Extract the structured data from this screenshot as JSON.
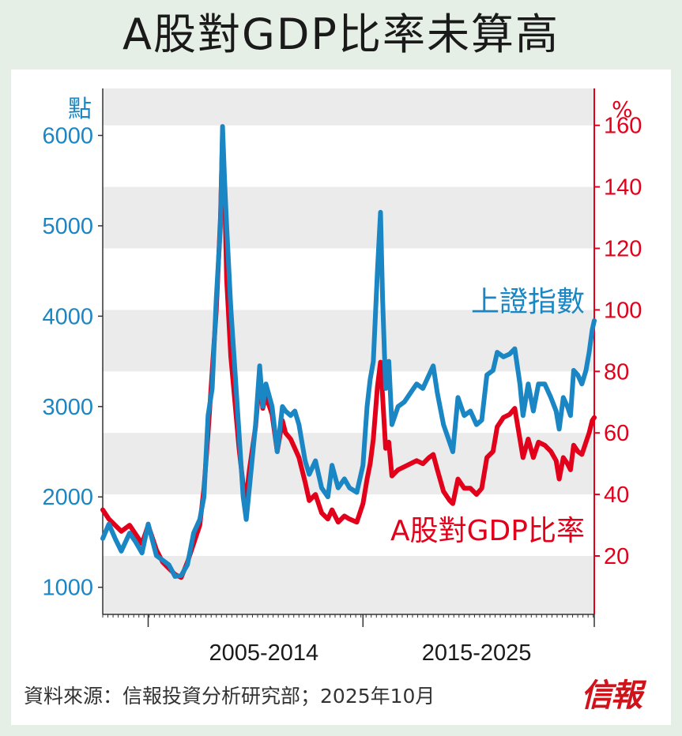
{
  "title": "A股對GDP比率未算高",
  "source": "資料來源：信報投資分析研究部；2025年10月",
  "logo_text": "信報",
  "colors": {
    "blue": "#1a86c4",
    "red": "#e2001a",
    "band": "#ebebeb"
  },
  "chart_data": {
    "type": "line",
    "left_axis": {
      "unit_label": "點",
      "ticks": [
        1000,
        2000,
        3000,
        4000,
        5000,
        6000
      ],
      "range": [
        700,
        6520
      ]
    },
    "right_axis": {
      "unit_label": "%",
      "ticks": [
        20,
        40,
        60,
        80,
        100,
        120,
        140,
        160
      ],
      "range": [
        1,
        172
      ]
    },
    "x_labels": [
      {
        "text": "2005-2014",
        "year": 2009.8
      },
      {
        "text": "2015-2025",
        "year": 2020.1
      }
    ],
    "x_range": [
      2002.0,
      2025.8
    ],
    "x_major_ticks": [
      2004.2,
      2014.6,
      2025.8
    ],
    "series": [
      {
        "name": "上證指數",
        "axis": "left",
        "color": "#1a86c4",
        "points": [
          [
            2002.0,
            1540
          ],
          [
            2002.3,
            1700
          ],
          [
            2002.6,
            1540
          ],
          [
            2002.9,
            1400
          ],
          [
            2003.3,
            1600
          ],
          [
            2003.6,
            1500
          ],
          [
            2003.9,
            1380
          ],
          [
            2004.2,
            1700
          ],
          [
            2004.6,
            1350
          ],
          [
            2004.9,
            1300
          ],
          [
            2005.2,
            1250
          ],
          [
            2005.5,
            1120
          ],
          [
            2005.8,
            1130
          ],
          [
            2006.1,
            1250
          ],
          [
            2006.4,
            1600
          ],
          [
            2006.7,
            1750
          ],
          [
            2006.9,
            2000
          ],
          [
            2007.1,
            2900
          ],
          [
            2007.3,
            3200
          ],
          [
            2007.5,
            4200
          ],
          [
            2007.7,
            5000
          ],
          [
            2007.8,
            6100
          ],
          [
            2007.9,
            5500
          ],
          [
            2008.0,
            5000
          ],
          [
            2008.2,
            4100
          ],
          [
            2008.4,
            3400
          ],
          [
            2008.6,
            2700
          ],
          [
            2008.8,
            2000
          ],
          [
            2008.95,
            1750
          ],
          [
            2009.1,
            2100
          ],
          [
            2009.4,
            2800
          ],
          [
            2009.6,
            3450
          ],
          [
            2009.75,
            3000
          ],
          [
            2009.9,
            3250
          ],
          [
            2010.2,
            3000
          ],
          [
            2010.45,
            2500
          ],
          [
            2010.7,
            3000
          ],
          [
            2010.85,
            2950
          ],
          [
            2011.1,
            2900
          ],
          [
            2011.3,
            2950
          ],
          [
            2011.5,
            2800
          ],
          [
            2011.8,
            2400
          ],
          [
            2012.0,
            2250
          ],
          [
            2012.3,
            2400
          ],
          [
            2012.6,
            2100
          ],
          [
            2012.9,
            2000
          ],
          [
            2013.1,
            2350
          ],
          [
            2013.4,
            2100
          ],
          [
            2013.7,
            2200
          ],
          [
            2013.95,
            2100
          ],
          [
            2014.3,
            2050
          ],
          [
            2014.6,
            2350
          ],
          [
            2014.8,
            3000
          ],
          [
            2014.95,
            3300
          ],
          [
            2015.1,
            3500
          ],
          [
            2015.3,
            4500
          ],
          [
            2015.45,
            5150
          ],
          [
            2015.55,
            4200
          ],
          [
            2015.7,
            3200
          ],
          [
            2015.85,
            3500
          ],
          [
            2016.0,
            2800
          ],
          [
            2016.3,
            3000
          ],
          [
            2016.6,
            3050
          ],
          [
            2016.9,
            3150
          ],
          [
            2017.2,
            3250
          ],
          [
            2017.5,
            3200
          ],
          [
            2017.8,
            3350
          ],
          [
            2018.0,
            3450
          ],
          [
            2018.2,
            3150
          ],
          [
            2018.5,
            2800
          ],
          [
            2018.8,
            2600
          ],
          [
            2018.95,
            2500
          ],
          [
            2019.2,
            3100
          ],
          [
            2019.5,
            2900
          ],
          [
            2019.8,
            2950
          ],
          [
            2020.1,
            2800
          ],
          [
            2020.35,
            2850
          ],
          [
            2020.6,
            3350
          ],
          [
            2020.9,
            3400
          ],
          [
            2021.1,
            3600
          ],
          [
            2021.4,
            3550
          ],
          [
            2021.7,
            3580
          ],
          [
            2021.95,
            3640
          ],
          [
            2022.2,
            3250
          ],
          [
            2022.35,
            2900
          ],
          [
            2022.6,
            3250
          ],
          [
            2022.85,
            2950
          ],
          [
            2023.1,
            3250
          ],
          [
            2023.4,
            3250
          ],
          [
            2023.7,
            3100
          ],
          [
            2023.95,
            2950
          ],
          [
            2024.1,
            2750
          ],
          [
            2024.3,
            3100
          ],
          [
            2024.5,
            3000
          ],
          [
            2024.65,
            2900
          ],
          [
            2024.8,
            3400
          ],
          [
            2025.0,
            3350
          ],
          [
            2025.2,
            3250
          ],
          [
            2025.4,
            3400
          ],
          [
            2025.55,
            3600
          ],
          [
            2025.7,
            3850
          ],
          [
            2025.8,
            3950
          ]
        ]
      },
      {
        "name": "A股對GDP比率",
        "axis": "right",
        "color": "#e2001a",
        "points": [
          [
            2002.0,
            35
          ],
          [
            2002.3,
            32
          ],
          [
            2002.6,
            30
          ],
          [
            2002.9,
            28
          ],
          [
            2003.3,
            30
          ],
          [
            2003.6,
            27
          ],
          [
            2003.9,
            24
          ],
          [
            2004.2,
            30
          ],
          [
            2004.6,
            22
          ],
          [
            2004.9,
            18
          ],
          [
            2005.2,
            16
          ],
          [
            2005.5,
            14
          ],
          [
            2005.8,
            13
          ],
          [
            2006.1,
            18
          ],
          [
            2006.4,
            24
          ],
          [
            2006.7,
            30
          ],
          [
            2006.9,
            42
          ],
          [
            2007.1,
            60
          ],
          [
            2007.3,
            80
          ],
          [
            2007.5,
            100
          ],
          [
            2007.7,
            130
          ],
          [
            2007.8,
            157
          ],
          [
            2007.9,
            140
          ],
          [
            2008.0,
            110
          ],
          [
            2008.2,
            85
          ],
          [
            2008.4,
            70
          ],
          [
            2008.6,
            55
          ],
          [
            2008.8,
            43
          ],
          [
            2008.95,
            39
          ],
          [
            2009.1,
            48
          ],
          [
            2009.4,
            62
          ],
          [
            2009.6,
            78
          ],
          [
            2009.75,
            68
          ],
          [
            2009.9,
            72
          ],
          [
            2010.2,
            66
          ],
          [
            2010.45,
            54
          ],
          [
            2010.7,
            64
          ],
          [
            2010.85,
            60
          ],
          [
            2011.1,
            58
          ],
          [
            2011.3,
            55
          ],
          [
            2011.5,
            52
          ],
          [
            2011.8,
            44
          ],
          [
            2012.0,
            38
          ],
          [
            2012.3,
            40
          ],
          [
            2012.6,
            34
          ],
          [
            2012.9,
            32
          ],
          [
            2013.1,
            35
          ],
          [
            2013.4,
            31
          ],
          [
            2013.7,
            33
          ],
          [
            2013.95,
            32
          ],
          [
            2014.3,
            31
          ],
          [
            2014.6,
            37
          ],
          [
            2014.8,
            45
          ],
          [
            2014.95,
            50
          ],
          [
            2015.1,
            58
          ],
          [
            2015.3,
            75
          ],
          [
            2015.45,
            83
          ],
          [
            2015.55,
            72
          ],
          [
            2015.7,
            55
          ],
          [
            2015.85,
            57
          ],
          [
            2016.0,
            46
          ],
          [
            2016.3,
            48
          ],
          [
            2016.6,
            49
          ],
          [
            2016.9,
            50
          ],
          [
            2017.2,
            51
          ],
          [
            2017.5,
            50
          ],
          [
            2017.8,
            52
          ],
          [
            2018.0,
            53
          ],
          [
            2018.2,
            48
          ],
          [
            2018.5,
            41
          ],
          [
            2018.8,
            38
          ],
          [
            2018.95,
            37
          ],
          [
            2019.2,
            45
          ],
          [
            2019.5,
            42
          ],
          [
            2019.8,
            42
          ],
          [
            2020.1,
            40
          ],
          [
            2020.35,
            42
          ],
          [
            2020.6,
            52
          ],
          [
            2020.9,
            54
          ],
          [
            2021.1,
            62
          ],
          [
            2021.4,
            65
          ],
          [
            2021.7,
            66
          ],
          [
            2021.95,
            68
          ],
          [
            2022.2,
            58
          ],
          [
            2022.35,
            52
          ],
          [
            2022.6,
            58
          ],
          [
            2022.85,
            52
          ],
          [
            2023.1,
            57
          ],
          [
            2023.4,
            56
          ],
          [
            2023.7,
            54
          ],
          [
            2023.95,
            51
          ],
          [
            2024.1,
            45
          ],
          [
            2024.3,
            52
          ],
          [
            2024.5,
            50
          ],
          [
            2024.65,
            48
          ],
          [
            2024.8,
            56
          ],
          [
            2025.0,
            54
          ],
          [
            2025.2,
            53
          ],
          [
            2025.4,
            57
          ],
          [
            2025.55,
            60
          ],
          [
            2025.7,
            64
          ],
          [
            2025.8,
            65
          ]
        ]
      }
    ]
  }
}
